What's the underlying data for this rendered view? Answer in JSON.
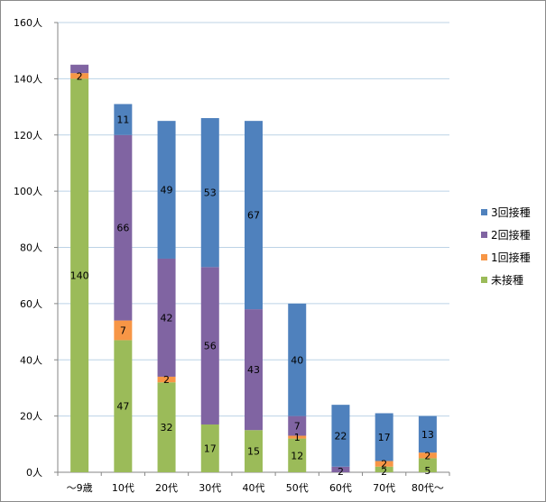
{
  "chart_data": {
    "type": "bar",
    "stacked": true,
    "categories": [
      "〜9歳",
      "10代",
      "20代",
      "30代",
      "40代",
      "50代",
      "60代",
      "70代",
      "80代〜"
    ],
    "series": [
      {
        "name": "未接種",
        "color": "#9bbb59",
        "values": [
          140,
          47,
          32,
          17,
          15,
          12,
          0,
          2,
          5
        ]
      },
      {
        "name": "1回接種",
        "color": "#f79646",
        "values": [
          2,
          7,
          2,
          0,
          0,
          1,
          0,
          2,
          2
        ]
      },
      {
        "name": "2回接種",
        "color": "#8064a2",
        "values": [
          3,
          66,
          42,
          56,
          43,
          7,
          2,
          0,
          0
        ]
      },
      {
        "name": "3回接種",
        "color": "#4f81bd",
        "values": [
          0,
          11,
          49,
          53,
          67,
          40,
          22,
          17,
          13
        ]
      }
    ],
    "data_labels": [
      {
        "category": 0,
        "series": 0,
        "text": "140"
      },
      {
        "category": 0,
        "series": 1,
        "text": "2"
      },
      {
        "category": 1,
        "series": 0,
        "text": "47"
      },
      {
        "category": 1,
        "series": 1,
        "text": "7"
      },
      {
        "category": 1,
        "series": 2,
        "text": "66"
      },
      {
        "category": 1,
        "series": 3,
        "text": "11"
      },
      {
        "category": 2,
        "series": 0,
        "text": "32"
      },
      {
        "category": 2,
        "series": 1,
        "text": "2"
      },
      {
        "category": 2,
        "series": 2,
        "text": "42"
      },
      {
        "category": 2,
        "series": 3,
        "text": "49"
      },
      {
        "category": 3,
        "series": 0,
        "text": "17"
      },
      {
        "category": 3,
        "series": 2,
        "text": "56"
      },
      {
        "category": 3,
        "series": 3,
        "text": "53"
      },
      {
        "category": 4,
        "series": 0,
        "text": "15"
      },
      {
        "category": 4,
        "series": 2,
        "text": "43"
      },
      {
        "category": 4,
        "series": 3,
        "text": "67"
      },
      {
        "category": 5,
        "series": 0,
        "text": "12"
      },
      {
        "category": 5,
        "series": 1,
        "text": "1"
      },
      {
        "category": 5,
        "series": 2,
        "text": "7"
      },
      {
        "category": 5,
        "series": 3,
        "text": "40"
      },
      {
        "category": 6,
        "series": 2,
        "text": "2"
      },
      {
        "category": 6,
        "series": 3,
        "text": "22"
      },
      {
        "category": 7,
        "series": 0,
        "text": "2"
      },
      {
        "category": 7,
        "series": 1,
        "text": "2"
      },
      {
        "category": 7,
        "series": 3,
        "text": "17"
      },
      {
        "category": 8,
        "series": 0,
        "text": "5"
      },
      {
        "category": 8,
        "series": 1,
        "text": "2"
      },
      {
        "category": 8,
        "series": 3,
        "text": "13"
      }
    ],
    "yticks": [
      "0人",
      "20人",
      "40人",
      "60人",
      "80人",
      "100人",
      "120人",
      "140人",
      "160人"
    ],
    "ylim": [
      0,
      160
    ],
    "grid": true,
    "legend_position": "right",
    "legend_order": [
      "3回接種",
      "2回接種",
      "1回接種",
      "未接種"
    ]
  }
}
